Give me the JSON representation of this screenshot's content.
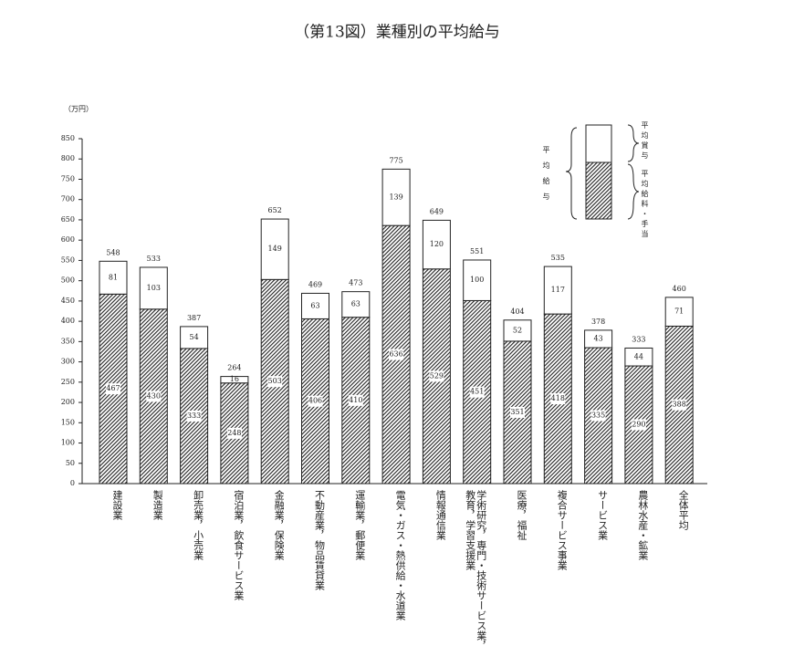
{
  "chart_data": {
    "type": "stacked-bar",
    "title": "（第13図）業種別の平均給与",
    "y_unit": "（万円）",
    "legend_title": "平均給与",
    "categories": [
      "建設業",
      "製造業",
      "卸売業，小売業",
      "宿泊業，飲食サービス業",
      "金融業，保険業",
      "不動産業，物品賃貸業",
      "運輸業，郵便業",
      "電気・ガス・熱供給・水道業",
      "情報通信業",
      "学術研究，専門・技術サービス業，教育，学習支援業",
      "医療，福祉",
      "複合サービス事業",
      "サービス業",
      "農林水産・鉱業",
      "全体平均"
    ],
    "series": [
      {
        "name": "平均給料・手当",
        "color": "#222222",
        "hatch": true,
        "values": [
          467,
          430,
          333,
          248,
          503,
          406,
          410,
          636,
          529,
          451,
          351,
          418,
          335,
          290,
          388
        ]
      },
      {
        "name": "平均賞与",
        "color": "#ffffff",
        "hatch": false,
        "values": [
          81,
          103,
          54,
          16,
          149,
          63,
          63,
          139,
          120,
          100,
          52,
          117,
          43,
          44,
          71
        ]
      }
    ],
    "totals": [
      548,
      533,
      387,
      264,
      652,
      469,
      473,
      775,
      649,
      551,
      404,
      535,
      378,
      333,
      460
    ],
    "ylim": [
      0,
      850
    ],
    "yticks": [
      0,
      50,
      100,
      150,
      200,
      250,
      300,
      350,
      400,
      450,
      500,
      550,
      600,
      650,
      700,
      750,
      800,
      850
    ],
    "grid": false
  }
}
